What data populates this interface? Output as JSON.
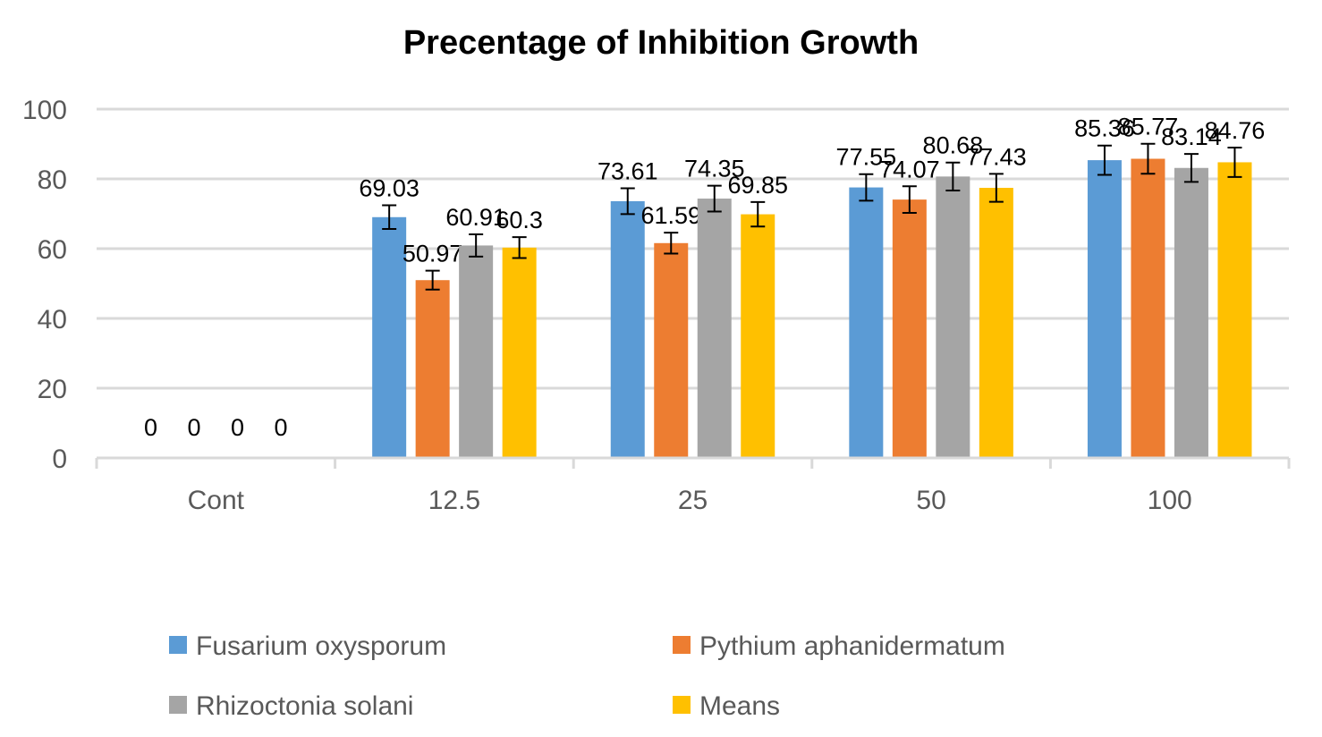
{
  "chart_data": {
    "type": "bar",
    "title": "Precentage of Inhibition Growth",
    "xlabel": "",
    "ylabel": "",
    "categories": [
      "Cont",
      "12.5",
      "25",
      "50",
      "100"
    ],
    "ylim": [
      0,
      100
    ],
    "yticks": [
      "0",
      "20",
      "40",
      "60",
      "80",
      "100"
    ],
    "grid": true,
    "legend_position": "bottom",
    "series": [
      {
        "name": "Fusarium oxysporum",
        "color": "#5B9BD5",
        "values": [
          0,
          69.03,
          73.61,
          77.55,
          85.36
        ],
        "labels": [
          "0",
          "69.03",
          "73.61",
          "77.55",
          "85.36"
        ],
        "errors": [
          0,
          3.4,
          3.7,
          3.8,
          4.2
        ]
      },
      {
        "name": "Pythium aphanidermatum",
        "color": "#ED7D31",
        "values": [
          0,
          50.97,
          61.59,
          74.07,
          85.77
        ],
        "labels": [
          "0",
          "50.97",
          "61.59",
          "74.07",
          "85.77"
        ],
        "errors": [
          0,
          2.7,
          3.0,
          3.8,
          4.3
        ]
      },
      {
        "name": "Rhizoctonia solani",
        "color": "#A5A5A5",
        "values": [
          0,
          60.91,
          74.35,
          80.68,
          83.14
        ],
        "labels": [
          "0",
          "60.91",
          "74.35",
          "80.68",
          "83.14"
        ],
        "errors": [
          0,
          3.2,
          3.7,
          4.0,
          4.0
        ]
      },
      {
        "name": "Means",
        "color": "#FFC000",
        "values": [
          0,
          60.3,
          69.85,
          77.43,
          84.76
        ],
        "labels": [
          "0",
          "60.3",
          "69.85",
          "77.43",
          "84.76"
        ],
        "errors": [
          0,
          3.0,
          3.5,
          4.0,
          4.2
        ]
      }
    ]
  }
}
